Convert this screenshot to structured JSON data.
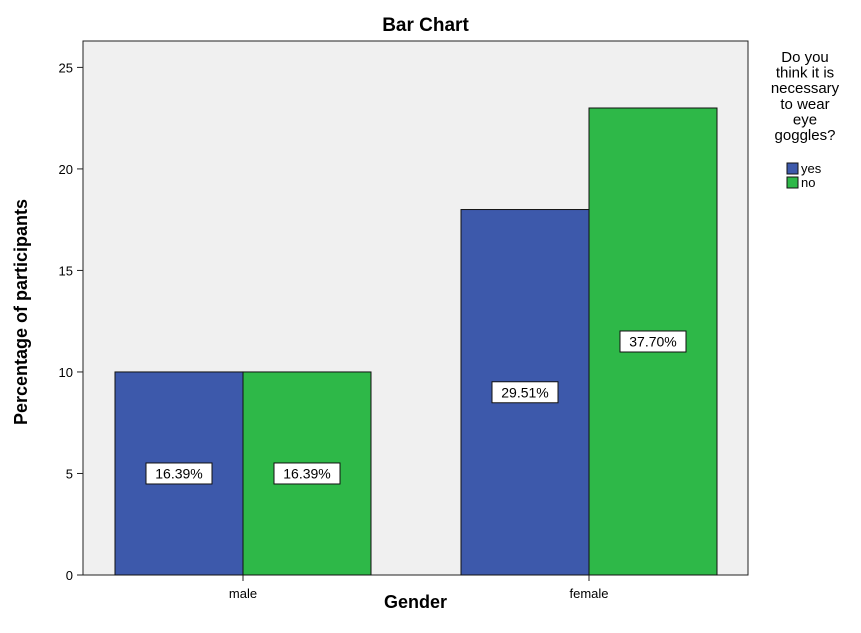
{
  "chart_data": {
    "type": "bar",
    "title": "Bar Chart",
    "xlabel": "Gender",
    "ylabel": "Percentage of participants",
    "categories": [
      "male",
      "female"
    ],
    "ylim": [
      0,
      26.3
    ],
    "yticks": [
      0,
      5,
      10,
      15,
      20,
      25
    ],
    "grid": false,
    "legend": {
      "title_lines": [
        "Do you",
        "think it is",
        "necessary",
        "to wear",
        "eye",
        "goggles?"
      ],
      "placement": "right"
    },
    "series": [
      {
        "name": "yes",
        "color": "#3d59ab",
        "values": [
          10,
          18
        ],
        "labels": [
          "16.39%",
          "29.51%"
        ]
      },
      {
        "name": "no",
        "color": "#2eb848",
        "values": [
          10,
          23
        ],
        "labels": [
          "16.39%",
          "37.70%"
        ]
      }
    ]
  }
}
